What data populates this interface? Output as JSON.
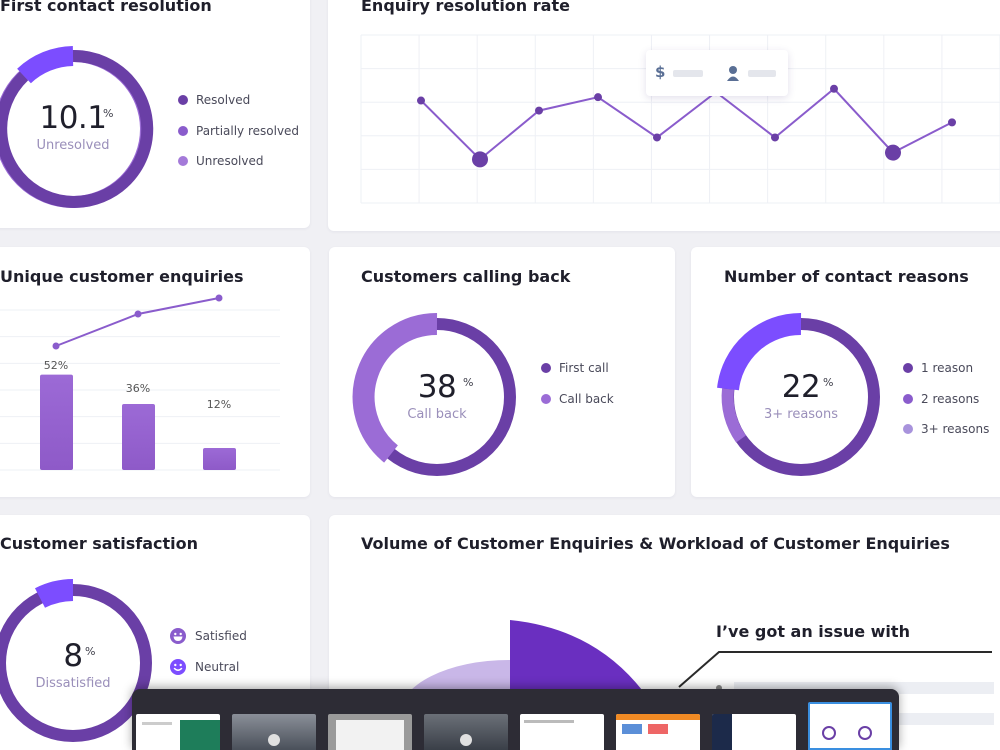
{
  "colors": {
    "primary": "#6a3fa6",
    "secondary": "#9b6cd6",
    "tertiary": "#a893dc",
    "accent": "#7c4dff",
    "bar": "#9866d0"
  },
  "first_contact": {
    "title": "First contact resolution",
    "value": "10.1",
    "unit": "%",
    "sublabel": "Unresolved",
    "legend": [
      "Resolved",
      "Partially resolved",
      "Unresolved"
    ]
  },
  "enquiry_rate": {
    "title": "Enquiry resolution rate",
    "tooltip": {
      "dollar_icon": "dollar-icon",
      "user_icon": "user-icon"
    }
  },
  "unique_enquiries": {
    "title": "Unique customer enquiries",
    "bar_labels": [
      "52%",
      "36%",
      "12%"
    ]
  },
  "calling_back": {
    "title": "Customers calling back",
    "value": "38",
    "unit": "%",
    "sublabel": "Call back",
    "legend": [
      "First call",
      "Call back"
    ]
  },
  "contact_reasons": {
    "title": "Number of contact reasons",
    "value": "22",
    "unit": "%",
    "sublabel": "3+ reasons",
    "legend": [
      "1 reason",
      "2 reasons",
      "3+ reasons"
    ]
  },
  "satisfaction": {
    "title": "Customer satisfaction",
    "value": "8",
    "unit": "%",
    "sublabel": "Dissatisfied",
    "legend": [
      "Satisfied",
      "Neutral"
    ]
  },
  "volume": {
    "title": "Volume of Customer Enquiries & Workload of Customer Enquiries",
    "callout": "I’ve got an issue with"
  },
  "chart_data": [
    {
      "type": "line",
      "title": "Enquiry resolution rate",
      "x": [
        1,
        2,
        3,
        4,
        5,
        6,
        7,
        8,
        9,
        10
      ],
      "values": [
        6.1,
        2.6,
        5.5,
        6.3,
        3.9,
        6.6,
        3.9,
        6.8,
        3.0,
        4.8
      ],
      "ylim": [
        0,
        10
      ],
      "highlighted_points": [
        1,
        8
      ]
    },
    {
      "type": "bar",
      "title": "Unique customer enquiries",
      "categories": [
        "1",
        "2",
        "3"
      ],
      "values": [
        52,
        36,
        12
      ],
      "line_values": [
        62,
        78,
        86
      ],
      "ylim": [
        0,
        100
      ]
    }
  ]
}
